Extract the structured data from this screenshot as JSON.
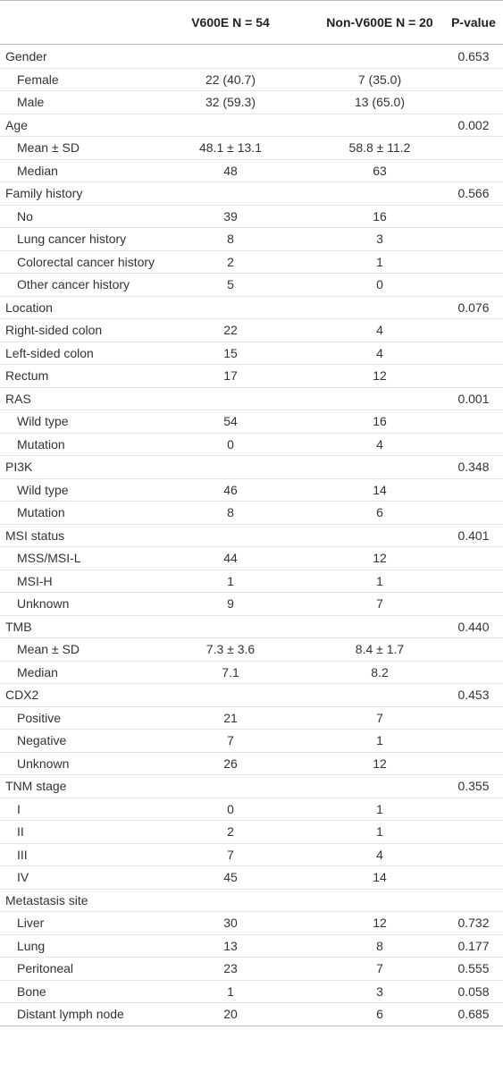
{
  "table": {
    "header": [
      "V600E N = 54",
      "Non-V600E N = 20",
      "P-value"
    ],
    "rows": [
      {
        "label": "Gender",
        "p": "0.653"
      },
      {
        "label": "Female",
        "indent": true,
        "v600e": "22 (40.7)",
        "non_v600e": "7 (35.0)"
      },
      {
        "label": "Male",
        "indent": true,
        "v600e": "32 (59.3)",
        "non_v600e": "13 (65.0)"
      },
      {
        "label": "Age",
        "p": "0.002"
      },
      {
        "label": "Mean ± SD",
        "indent": true,
        "v600e": "48.1 ± 13.1",
        "non_v600e": "58.8 ± 11.2"
      },
      {
        "label": "Median",
        "indent": true,
        "v600e": "48",
        "non_v600e": "63"
      },
      {
        "label": "Family history",
        "p": "0.566"
      },
      {
        "label": "No",
        "indent": true,
        "v600e": "39",
        "non_v600e": "16"
      },
      {
        "label": "Lung cancer history",
        "indent": true,
        "v600e": "8",
        "non_v600e": "3"
      },
      {
        "label": "Colorectal cancer history",
        "indent": true,
        "v600e": "2",
        "non_v600e": "1"
      },
      {
        "label": "Other cancer history",
        "indent": true,
        "v600e": "5",
        "non_v600e": "0"
      },
      {
        "label": "Location",
        "p": "0.076"
      },
      {
        "label": "Right-sided colon",
        "v600e": "22",
        "non_v600e": "4"
      },
      {
        "label": "Left-sided colon",
        "v600e": "15",
        "non_v600e": "4"
      },
      {
        "label": "Rectum",
        "v600e": "17",
        "non_v600e": "12"
      },
      {
        "label": "RAS",
        "p": "0.001"
      },
      {
        "label": "Wild type",
        "indent": true,
        "v600e": "54",
        "non_v600e": "16"
      },
      {
        "label": "Mutation",
        "indent": true,
        "v600e": "0",
        "non_v600e": "4"
      },
      {
        "label": "PI3K",
        "p": "0.348"
      },
      {
        "label": "Wild type",
        "indent": true,
        "v600e": "46",
        "non_v600e": "14"
      },
      {
        "label": "Mutation",
        "indent": true,
        "v600e": "8",
        "non_v600e": "6"
      },
      {
        "label": "MSI status",
        "p": "0.401"
      },
      {
        "label": "MSS/MSI-L",
        "indent": true,
        "v600e": "44",
        "non_v600e": "12"
      },
      {
        "label": "MSI-H",
        "indent": true,
        "v600e": "1",
        "non_v600e": "1"
      },
      {
        "label": "Unknown",
        "indent": true,
        "v600e": "9",
        "non_v600e": "7"
      },
      {
        "label": "TMB",
        "p": "0.440"
      },
      {
        "label": "Mean ± SD",
        "indent": true,
        "v600e": "7.3 ± 3.6",
        "non_v600e": "8.4 ± 1.7"
      },
      {
        "label": "Median",
        "indent": true,
        "v600e": "7.1",
        "non_v600e": "8.2"
      },
      {
        "label": "CDX2",
        "p": "0.453"
      },
      {
        "label": "Positive",
        "indent": true,
        "v600e": "21",
        "non_v600e": "7"
      },
      {
        "label": "Negative",
        "indent": true,
        "v600e": "7",
        "non_v600e": "1"
      },
      {
        "label": "Unknown",
        "indent": true,
        "v600e": "26",
        "non_v600e": "12"
      },
      {
        "label": "TNM stage",
        "p": "0.355"
      },
      {
        "label": "I",
        "indent": true,
        "v600e": "0",
        "non_v600e": "1"
      },
      {
        "label": "II",
        "indent": true,
        "v600e": "2",
        "non_v600e": "1"
      },
      {
        "label": "III",
        "indent": true,
        "v600e": "7",
        "non_v600e": "4"
      },
      {
        "label": "IV",
        "indent": true,
        "v600e": "45",
        "non_v600e": "14"
      },
      {
        "label": "Metastasis site"
      },
      {
        "label": "Liver",
        "indent": true,
        "v600e": "30",
        "non_v600e": "12",
        "p": "0.732"
      },
      {
        "label": "Lung",
        "indent": true,
        "v600e": "13",
        "non_v600e": "8",
        "p": "0.177"
      },
      {
        "label": "Peritoneal",
        "indent": true,
        "v600e": "23",
        "non_v600e": "7",
        "p": "0.555"
      },
      {
        "label": "Bone",
        "indent": true,
        "v600e": "1",
        "non_v600e": "3",
        "p": "0.058"
      },
      {
        "label": "Distant lymph node",
        "indent": true,
        "v600e": "20",
        "non_v600e": "6",
        "p": "0.685"
      }
    ]
  }
}
